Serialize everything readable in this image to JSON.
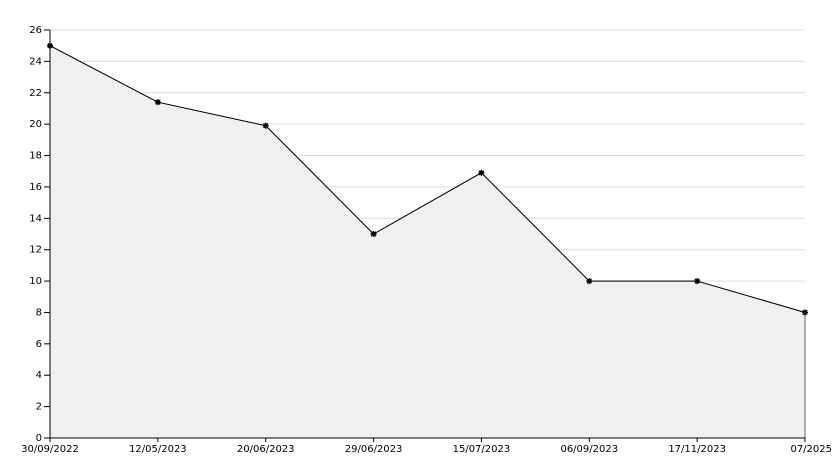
{
  "chart_data": {
    "type": "area",
    "categories": [
      "30/09/2022",
      "12/05/2023",
      "20/06/2023",
      "29/06/2023",
      "15/07/2023",
      "06/09/2023",
      "17/11/2023",
      "07/2025"
    ],
    "values": [
      25,
      21.4,
      19.9,
      13,
      16.9,
      10,
      10,
      8
    ],
    "color": "#000000",
    "fill": "#f0f0f0",
    "ylim": [
      0,
      26
    ],
    "yticks": [
      0,
      2,
      4,
      6,
      8,
      10,
      12,
      14,
      16,
      18,
      20,
      22,
      24,
      26
    ],
    "grid": true
  }
}
